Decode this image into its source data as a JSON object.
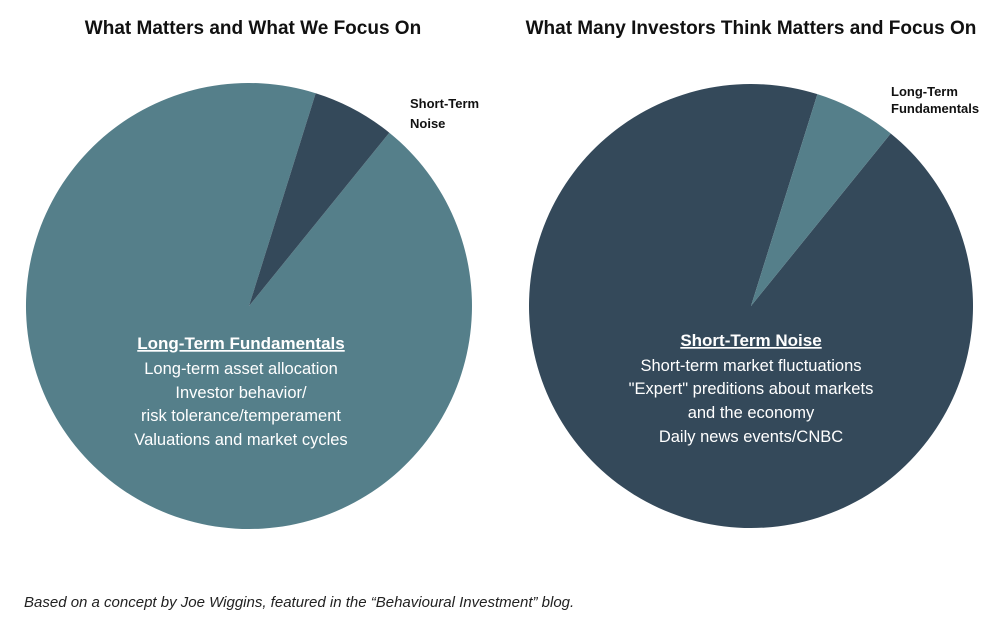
{
  "chart_data": [
    {
      "type": "pie",
      "title": "What Matters and What We Focus On",
      "slices": [
        {
          "label": "Long-Term Fundamentals",
          "value": 94,
          "color": "#557f8a"
        },
        {
          "label": "Short-Term Noise",
          "value": 6,
          "color": "#34495a"
        }
      ],
      "center_text": {
        "heading": "Long-Term Fundamentals",
        "lines": [
          "Long-term asset allocation",
          "Investor behavior/",
          "risk tolerance/temperament",
          "Valuations and market cycles"
        ]
      },
      "callout": [
        "Short-Term",
        "Noise"
      ]
    },
    {
      "type": "pie",
      "title": "What Many Investors Think Matters and Focus On",
      "slices": [
        {
          "label": "Short-Term Noise",
          "value": 94,
          "color": "#34495a"
        },
        {
          "label": "Long-Term Fundamentals",
          "value": 6,
          "color": "#557f8a"
        }
      ],
      "center_text": {
        "heading": "Short-Term Noise",
        "lines": [
          "Short-term market fluctuations",
          "\"Expert\" preditions about markets",
          "and the economy",
          "Daily news events/CNBC"
        ]
      },
      "callout": [
        "Long-Term",
        "Fundamentals"
      ]
    }
  ],
  "footnote": "Based on a concept by Joe Wiggins, featured in the “Behavioural Investment” blog."
}
